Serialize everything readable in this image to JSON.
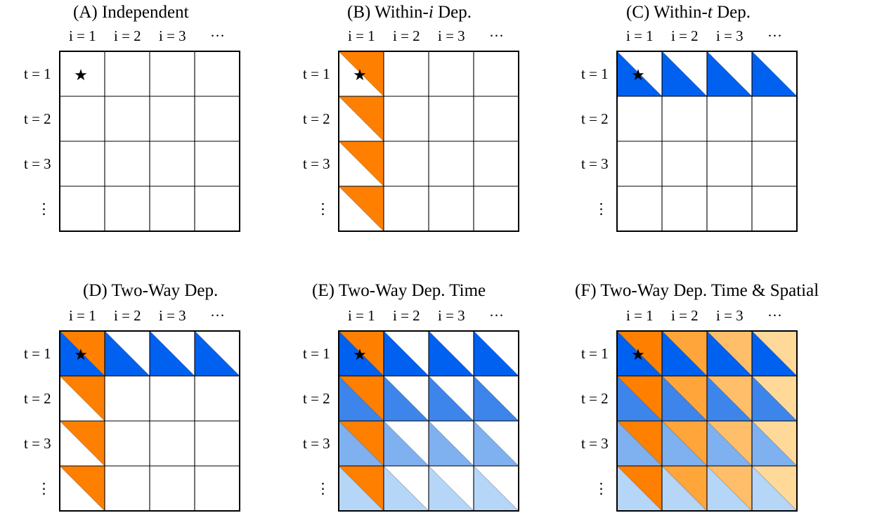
{
  "figure": {
    "colors": {
      "orange": "#ff8000",
      "orange_mid": "#ffa53a",
      "orange_light": "#ffbe6a",
      "orange_pale": "#ffd99a",
      "blue": "#0060f0",
      "blue_mid": "#3d85ea",
      "blue_light": "#7fb0f0",
      "blue_pale": "#b6d6f8"
    },
    "col_labels": [
      "i = 1",
      "i = 2",
      "i = 3",
      "···"
    ],
    "row_labels": [
      "t = 1",
      "t = 2",
      "t = 3",
      "⋮"
    ],
    "star_symbol": "★",
    "panels": [
      {
        "id": "A",
        "title_pre": "(A) Independent",
        "title_var": "",
        "title_post": "",
        "cells": [
          [
            [
              null,
              null
            ],
            [
              null,
              null
            ],
            [
              null,
              null
            ],
            [
              null,
              null
            ]
          ],
          [
            [
              null,
              null
            ],
            [
              null,
              null
            ],
            [
              null,
              null
            ],
            [
              null,
              null
            ]
          ],
          [
            [
              null,
              null
            ],
            [
              null,
              null
            ],
            [
              null,
              null
            ],
            [
              null,
              null
            ]
          ],
          [
            [
              null,
              null
            ],
            [
              null,
              null
            ],
            [
              null,
              null
            ],
            [
              null,
              null
            ]
          ]
        ]
      },
      {
        "id": "B",
        "title_pre": "(B) Within-",
        "title_var": "i",
        "title_post": " Dep.",
        "cells": [
          [
            [
              "orange",
              null
            ],
            [
              null,
              null
            ],
            [
              null,
              null
            ],
            [
              null,
              null
            ]
          ],
          [
            [
              "orange",
              null
            ],
            [
              null,
              null
            ],
            [
              null,
              null
            ],
            [
              null,
              null
            ]
          ],
          [
            [
              "orange",
              null
            ],
            [
              null,
              null
            ],
            [
              null,
              null
            ],
            [
              null,
              null
            ]
          ],
          [
            [
              "orange",
              null
            ],
            [
              null,
              null
            ],
            [
              null,
              null
            ],
            [
              null,
              null
            ]
          ]
        ]
      },
      {
        "id": "C",
        "title_pre": "(C) Within-",
        "title_var": "t",
        "title_post": " Dep.",
        "cells": [
          [
            [
              null,
              "blue"
            ],
            [
              null,
              "blue"
            ],
            [
              null,
              "blue"
            ],
            [
              null,
              "blue"
            ]
          ],
          [
            [
              null,
              null
            ],
            [
              null,
              null
            ],
            [
              null,
              null
            ],
            [
              null,
              null
            ]
          ],
          [
            [
              null,
              null
            ],
            [
              null,
              null
            ],
            [
              null,
              null
            ],
            [
              null,
              null
            ]
          ],
          [
            [
              null,
              null
            ],
            [
              null,
              null
            ],
            [
              null,
              null
            ],
            [
              null,
              null
            ]
          ]
        ]
      },
      {
        "id": "D",
        "title_pre": "(D) Two-Way Dep.",
        "title_var": "",
        "title_post": "",
        "cells": [
          [
            [
              "orange",
              "blue"
            ],
            [
              null,
              "blue"
            ],
            [
              null,
              "blue"
            ],
            [
              null,
              "blue"
            ]
          ],
          [
            [
              "orange",
              null
            ],
            [
              null,
              null
            ],
            [
              null,
              null
            ],
            [
              null,
              null
            ]
          ],
          [
            [
              "orange",
              null
            ],
            [
              null,
              null
            ],
            [
              null,
              null
            ],
            [
              null,
              null
            ]
          ],
          [
            [
              "orange",
              null
            ],
            [
              null,
              null
            ],
            [
              null,
              null
            ],
            [
              null,
              null
            ]
          ]
        ]
      },
      {
        "id": "E",
        "title_pre": "(E) Two-Way Dep. Time",
        "title_var": "",
        "title_post": "",
        "cells": [
          [
            [
              "orange",
              "blue"
            ],
            [
              null,
              "blue"
            ],
            [
              null,
              "blue"
            ],
            [
              null,
              "blue"
            ]
          ],
          [
            [
              "orange",
              "blue_mid"
            ],
            [
              null,
              "blue_mid"
            ],
            [
              null,
              "blue_mid"
            ],
            [
              null,
              "blue_mid"
            ]
          ],
          [
            [
              "orange",
              "blue_light"
            ],
            [
              null,
              "blue_light"
            ],
            [
              null,
              "blue_light"
            ],
            [
              null,
              "blue_light"
            ]
          ],
          [
            [
              "orange",
              "blue_pale"
            ],
            [
              null,
              "blue_pale"
            ],
            [
              null,
              "blue_pale"
            ],
            [
              null,
              "blue_pale"
            ]
          ]
        ]
      },
      {
        "id": "F",
        "title_pre": "(F) Two-Way Dep. Time & Spatial",
        "title_var": "",
        "title_post": "",
        "cells": [
          [
            [
              "orange",
              "blue"
            ],
            [
              "orange_mid",
              "blue"
            ],
            [
              "orange_light",
              "blue"
            ],
            [
              "orange_pale",
              "blue"
            ]
          ],
          [
            [
              "orange",
              "blue_mid"
            ],
            [
              "orange_mid",
              "blue_mid"
            ],
            [
              "orange_light",
              "blue_mid"
            ],
            [
              "orange_pale",
              "blue_mid"
            ]
          ],
          [
            [
              "orange",
              "blue_light"
            ],
            [
              "orange_mid",
              "blue_light"
            ],
            [
              "orange_light",
              "blue_light"
            ],
            [
              "orange_pale",
              "blue_light"
            ]
          ],
          [
            [
              "orange",
              "blue_pale"
            ],
            [
              "orange_mid",
              "blue_pale"
            ],
            [
              "orange_light",
              "blue_pale"
            ],
            [
              "orange_pale",
              "blue_pale"
            ]
          ]
        ]
      }
    ]
  }
}
